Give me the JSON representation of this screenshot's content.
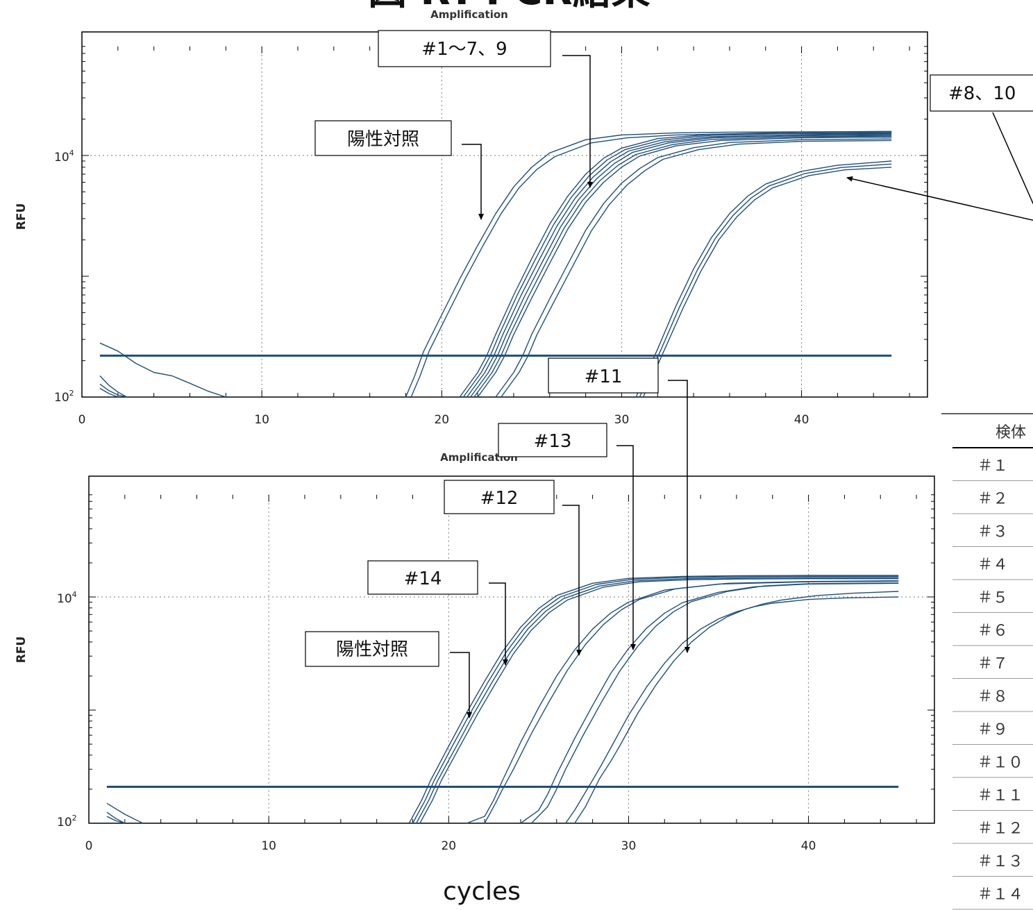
{
  "title_fragment": "図   RT-PCR結果",
  "x_axis_label": "cycles",
  "table": {
    "header": "検体",
    "rows": [
      "＃１",
      "＃２",
      "＃３",
      "＃４",
      "＃５",
      "＃６",
      "＃７",
      "＃８",
      "＃９",
      "＃１０",
      "＃１１",
      "＃１２",
      "＃１３",
      "＃１４"
    ]
  },
  "colors": {
    "curve": "#1f4e79",
    "threshold": "#1f4e79",
    "arrow": "#000000"
  },
  "chart_data": [
    {
      "type": "line",
      "title": "Amplification",
      "xlabel": "",
      "ylabel": "RFU",
      "yscale": "log",
      "xlim": [
        0,
        47
      ],
      "ylim": [
        100,
        80000
      ],
      "xticks": [
        0,
        10,
        20,
        30,
        40
      ],
      "yticks": [
        {
          "value": 100,
          "label": "10^2"
        },
        {
          "value": 10000,
          "label": "10^4"
        }
      ],
      "grid": true,
      "threshold": 220,
      "annotations": [
        "#1〜7、9",
        "陽性対照",
        "#8、10",
        "#11"
      ],
      "series": [
        {
          "group": "positive-control",
          "x": [
            18,
            18.5,
            19,
            20,
            21,
            22,
            23,
            24,
            25,
            26,
            28,
            30,
            33,
            36,
            40,
            45
          ],
          "y": [
            100,
            150,
            240,
            480,
            950,
            1800,
            3300,
            5500,
            8000,
            10500,
            13500,
            14800,
            15400,
            15600,
            15700,
            15800
          ]
        },
        {
          "group": "positive-control",
          "x": [
            18.3,
            18.8,
            19.3,
            20.3,
            21.3,
            22.3,
            23.3,
            24.3,
            25.3,
            26.3,
            28.3,
            30.3,
            33,
            36,
            40,
            45
          ],
          "y": [
            100,
            150,
            240,
            480,
            950,
            1800,
            3300,
            5400,
            7700,
            9800,
            12700,
            14000,
            14800,
            15100,
            15200,
            15300
          ]
        },
        {
          "group": "samples-1-7-9",
          "x": [
            21,
            22,
            22.5,
            23,
            24,
            25,
            26,
            27,
            28,
            29,
            30,
            32,
            35,
            40,
            45
          ],
          "y": [
            100,
            160,
            220,
            330,
            700,
            1400,
            2700,
            4600,
            7000,
            9500,
            11500,
            13800,
            15000,
            15600,
            15800
          ]
        },
        {
          "group": "samples-1-7-9",
          "x": [
            21.2,
            22.2,
            22.7,
            23.2,
            24.2,
            25.2,
            26.2,
            27.2,
            28.2,
            29.2,
            30.2,
            32.2,
            35,
            40,
            45
          ],
          "y": [
            100,
            160,
            220,
            330,
            700,
            1380,
            2650,
            4500,
            6800,
            9200,
            11200,
            13400,
            14700,
            15300,
            15500
          ]
        },
        {
          "group": "samples-1-7-9",
          "x": [
            21.4,
            22.4,
            22.9,
            23.4,
            24.4,
            25.4,
            26.4,
            27.4,
            28.4,
            29.4,
            30.4,
            32.4,
            35,
            40,
            45
          ],
          "y": [
            100,
            160,
            220,
            330,
            690,
            1350,
            2600,
            4400,
            6600,
            8900,
            10900,
            13000,
            14300,
            14900,
            15100
          ]
        },
        {
          "group": "samples-1-7-9",
          "x": [
            21.6,
            22.6,
            23.1,
            23.6,
            24.6,
            25.6,
            26.6,
            27.6,
            28.6,
            29.6,
            30.6,
            32.6,
            35,
            40,
            45
          ],
          "y": [
            100,
            160,
            220,
            330,
            680,
            1320,
            2550,
            4300,
            6400,
            8600,
            10600,
            12700,
            14000,
            14600,
            14800
          ]
        },
        {
          "group": "samples-1-7-9",
          "x": [
            21.8,
            22.8,
            23.3,
            23.8,
            24.8,
            25.8,
            26.8,
            27.8,
            28.8,
            29.8,
            30.8,
            32.8,
            35,
            40,
            45
          ],
          "y": [
            100,
            160,
            220,
            330,
            670,
            1300,
            2500,
            4200,
            6200,
            8300,
            10200,
            12300,
            13600,
            14300,
            14500
          ]
        },
        {
          "group": "samples-1-7-9",
          "x": [
            22.0,
            23.0,
            23.5,
            24.0,
            25.0,
            26.0,
            27.0,
            28.0,
            29.0,
            30.0,
            31.0,
            33.0,
            35.5,
            40,
            45
          ],
          "y": [
            100,
            160,
            220,
            330,
            660,
            1280,
            2450,
            4100,
            6000,
            8000,
            9900,
            12000,
            13300,
            14000,
            14200
          ]
        },
        {
          "group": "samples-1-7-9",
          "x": [
            23,
            24,
            24.5,
            25,
            26,
            27,
            28,
            29,
            30,
            31,
            32,
            34,
            36,
            40,
            45
          ],
          "y": [
            100,
            160,
            220,
            330,
            650,
            1250,
            2400,
            4000,
            5900,
            7800,
            9600,
            11600,
            12800,
            13500,
            13700
          ]
        },
        {
          "group": "samples-1-7-9",
          "x": [
            23.3,
            24.3,
            24.8,
            25.3,
            26.3,
            27.3,
            28.3,
            29.3,
            30.3,
            31.3,
            32.3,
            34.3,
            36.5,
            40,
            45
          ],
          "y": [
            100,
            160,
            220,
            330,
            640,
            1230,
            2350,
            3900,
            5700,
            7500,
            9300,
            11200,
            12400,
            13100,
            13300
          ]
        },
        {
          "group": "samples-8-10",
          "x": [
            30.8,
            31.5,
            32,
            33,
            34,
            35,
            36,
            37,
            38,
            40,
            42,
            45
          ],
          "y": [
            100,
            170,
            250,
            560,
            1150,
            2100,
            3300,
            4600,
            5800,
            7400,
            8300,
            9000
          ]
        },
        {
          "group": "samples-8-10",
          "x": [
            31.0,
            31.7,
            32.2,
            33.2,
            34.2,
            35.2,
            36.2,
            37.2,
            38.2,
            40.2,
            42.2,
            45
          ],
          "y": [
            100,
            170,
            250,
            550,
            1120,
            2050,
            3200,
            4450,
            5600,
            7100,
            7950,
            8500
          ]
        },
        {
          "group": "samples-8-10",
          "x": [
            31.2,
            31.9,
            32.4,
            33.4,
            34.4,
            35.4,
            36.4,
            37.4,
            38.4,
            40.4,
            42.4,
            45
          ],
          "y": [
            100,
            170,
            250,
            540,
            1100,
            2000,
            3100,
            4300,
            5400,
            6800,
            7600,
            8000
          ]
        },
        {
          "group": "baseline",
          "x": [
            1,
            2,
            3,
            4,
            5,
            6,
            7,
            8
          ],
          "y": [
            280,
            240,
            190,
            160,
            150,
            130,
            112,
            100
          ]
        },
        {
          "group": "baseline",
          "x": [
            1,
            1.5,
            2,
            2.5
          ],
          "y": [
            150,
            125,
            110,
            100
          ]
        },
        {
          "group": "baseline",
          "x": [
            1,
            1.5,
            2,
            2.5
          ],
          "y": [
            128,
            113,
            104,
            100
          ]
        },
        {
          "group": "baseline",
          "x": [
            1,
            1.5,
            2
          ],
          "y": [
            118,
            107,
            100
          ]
        }
      ]
    },
    {
      "type": "line",
      "title": "Amplification",
      "xlabel": "",
      "ylabel": "RFU",
      "yscale": "log",
      "xlim": [
        0,
        47
      ],
      "ylim": [
        100,
        80000
      ],
      "xticks": [
        0,
        10,
        20,
        30,
        40
      ],
      "yticks": [
        {
          "value": 100,
          "label": "10^2"
        },
        {
          "value": 10000,
          "label": "10^4"
        }
      ],
      "grid": true,
      "threshold": 210,
      "annotations": [
        "#13",
        "#12",
        "#14",
        "陽性対照",
        "#11"
      ],
      "series": [
        {
          "group": "positive-control-14",
          "x": [
            17.8,
            18.5,
            19,
            20,
            21,
            22,
            23,
            24,
            25,
            26,
            28,
            30,
            33,
            36,
            40,
            45
          ],
          "y": [
            100,
            160,
            240,
            480,
            950,
            1800,
            3300,
            5400,
            7900,
            10300,
            13200,
            14600,
            15200,
            15400,
            15500,
            15500
          ]
        },
        {
          "group": "positive-control-14",
          "x": [
            18.0,
            18.7,
            19.2,
            20.2,
            21.2,
            22.2,
            23.2,
            24.2,
            25.2,
            26.2,
            28.2,
            30.2,
            33,
            36,
            40,
            45
          ],
          "y": [
            100,
            160,
            240,
            480,
            940,
            1780,
            3250,
            5300,
            7700,
            10000,
            12900,
            14300,
            14900,
            15100,
            15200,
            15200
          ]
        },
        {
          "group": "positive-control-14",
          "x": [
            18.2,
            18.9,
            19.4,
            20.4,
            21.4,
            22.4,
            23.4,
            24.4,
            25.4,
            26.4,
            28.4,
            30.4,
            33.2,
            36,
            40,
            45
          ],
          "y": [
            100,
            160,
            240,
            470,
            930,
            1750,
            3200,
            5200,
            7500,
            9700,
            12500,
            13900,
            14500,
            14700,
            14800,
            14800
          ]
        },
        {
          "group": "positive-control-14",
          "x": [
            18.4,
            19.1,
            19.6,
            20.6,
            21.6,
            22.6,
            23.6,
            24.6,
            25.6,
            26.6,
            28.6,
            30.6,
            33.4,
            36,
            40,
            45
          ],
          "y": [
            100,
            160,
            240,
            470,
            920,
            1720,
            3150,
            5100,
            7300,
            9400,
            12200,
            13600,
            14200,
            14400,
            14500,
            14500
          ]
        },
        {
          "group": "sample-12",
          "x": [
            21,
            22,
            22.5,
            23,
            24,
            25,
            26,
            27,
            28,
            29,
            30,
            32,
            35,
            40,
            45
          ],
          "y": [
            100,
            115,
            160,
            240,
            520,
            1050,
            2000,
            3400,
            5200,
            7200,
            9000,
            11500,
            13000,
            13600,
            13800
          ]
        },
        {
          "group": "sample-12",
          "x": [
            22,
            22.6,
            23,
            23.6,
            24.6,
            25.6,
            26.6,
            27.6,
            28.6,
            29.6,
            30.6,
            32.6,
            35.5,
            40,
            45
          ],
          "y": [
            100,
            150,
            200,
            300,
            620,
            1200,
            2250,
            3800,
            5700,
            7700,
            9500,
            11800,
            13200,
            13700,
            13900
          ]
        },
        {
          "group": "sample-13",
          "x": [
            24,
            25,
            25.5,
            26,
            27,
            28,
            29,
            30,
            31,
            32,
            33,
            35,
            37,
            40,
            45
          ],
          "y": [
            100,
            130,
            180,
            270,
            560,
            1100,
            2100,
            3500,
            5300,
            7200,
            8900,
            11000,
            12300,
            13000,
            13200
          ]
        },
        {
          "group": "sample-13",
          "x": [
            24.6,
            25.5,
            26,
            26.5,
            27.5,
            28.5,
            29.5,
            30.5,
            31.5,
            32.5,
            33.5,
            35.5,
            37.5,
            40,
            45
          ],
          "y": [
            100,
            140,
            200,
            300,
            610,
            1180,
            2200,
            3650,
            5500,
            7400,
            9100,
            11200,
            12500,
            13100,
            13300
          ]
        },
        {
          "group": "sample-11",
          "x": [
            26.5,
            27,
            28,
            28.5,
            29,
            30,
            31,
            32,
            33,
            34,
            35,
            36,
            37,
            38,
            40,
            42,
            45
          ],
          "y": [
            100,
            130,
            240,
            330,
            460,
            900,
            1600,
            2600,
            3900,
            5200,
            6400,
            7400,
            8200,
            8800,
            9500,
            9800,
            10000
          ]
        },
        {
          "group": "sample-11",
          "x": [
            27,
            27.6,
            28.4,
            29,
            29.5,
            30.5,
            31.5,
            32.5,
            33.5,
            34.5,
            35.5,
            36.5,
            37.5,
            38.5,
            40.5,
            42.5,
            45
          ],
          "y": [
            100,
            140,
            250,
            350,
            480,
            930,
            1650,
            2700,
            4000,
            5400,
            6700,
            7800,
            8700,
            9400,
            10300,
            10800,
            11200
          ]
        },
        {
          "group": "baseline",
          "x": [
            1,
            2,
            3
          ],
          "y": [
            150,
            120,
            100
          ]
        },
        {
          "group": "baseline",
          "x": [
            1,
            1.5,
            2
          ],
          "y": [
            125,
            110,
            100
          ]
        },
        {
          "group": "baseline",
          "x": [
            1,
            1.5,
            2
          ],
          "y": [
            115,
            105,
            100
          ]
        }
      ]
    }
  ]
}
